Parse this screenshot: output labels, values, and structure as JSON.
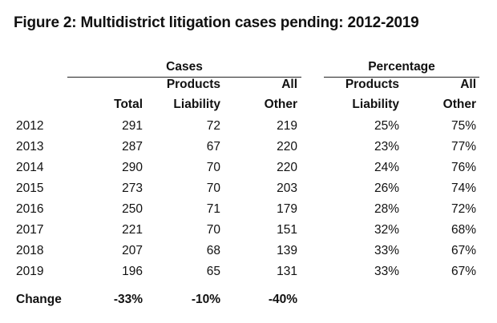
{
  "title": "Figure 2: Multidistrict litigation cases pending: 2012-2019",
  "groups": {
    "cases": "Cases",
    "percentage": "Percentage"
  },
  "headers": [
    {
      "line1": "",
      "line2": "Total"
    },
    {
      "line1": "Products",
      "line2": "Liability"
    },
    {
      "line1": "All",
      "line2": "Other"
    },
    {
      "line1": "Products",
      "line2": "Liability"
    },
    {
      "line1": "All",
      "line2": "Other"
    }
  ],
  "rows": [
    {
      "year": "2012",
      "values": [
        "291",
        "72",
        "219",
        "25%",
        "75%"
      ]
    },
    {
      "year": "2013",
      "values": [
        "287",
        "67",
        "220",
        "23%",
        "77%"
      ]
    },
    {
      "year": "2014",
      "values": [
        "290",
        "70",
        "220",
        "24%",
        "76%"
      ]
    },
    {
      "year": "2015",
      "values": [
        "273",
        "70",
        "203",
        "26%",
        "74%"
      ]
    },
    {
      "year": "2016",
      "values": [
        "250",
        "71",
        "179",
        "28%",
        "72%"
      ]
    },
    {
      "year": "2017",
      "values": [
        "221",
        "70",
        "151",
        "32%",
        "68%"
      ]
    },
    {
      "year": "2018",
      "values": [
        "207",
        "68",
        "139",
        "33%",
        "67%"
      ]
    },
    {
      "year": "2019",
      "values": [
        "196",
        "65",
        "131",
        "33%",
        "67%"
      ]
    }
  ],
  "change": {
    "label": "Change",
    "values": [
      "-33%",
      "-10%",
      "-40%"
    ]
  }
}
